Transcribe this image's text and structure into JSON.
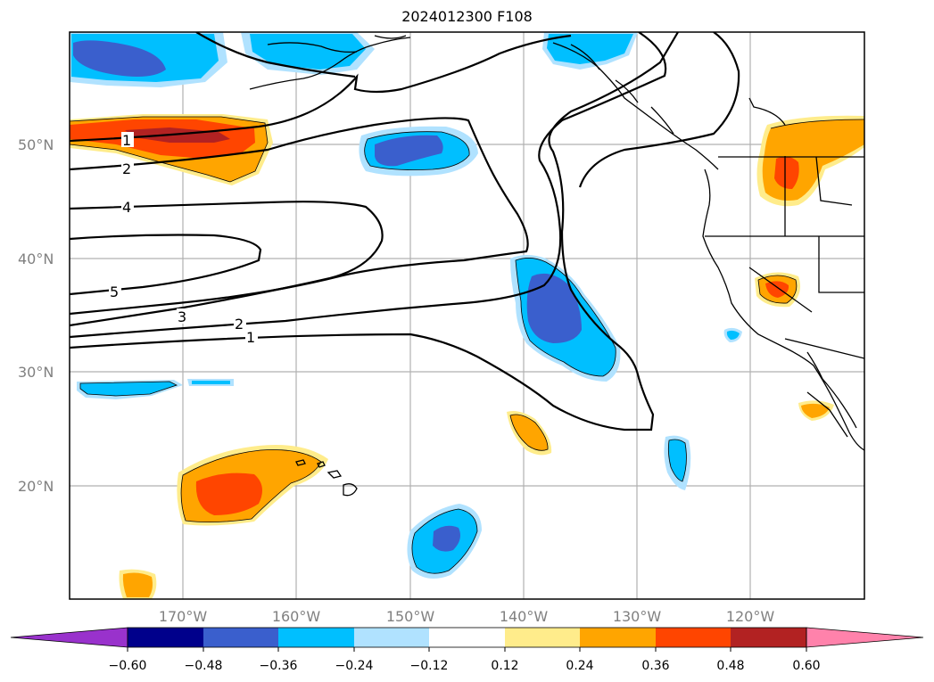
{
  "title": "2024012300 F108",
  "map": {
    "lat_labels": [
      "50°N",
      "40°N",
      "30°N",
      "20°N"
    ],
    "lon_labels": [
      "170°W",
      "160°W",
      "150°W",
      "140°W",
      "130°W",
      "120°W"
    ],
    "contour_labels": [
      "1",
      "2",
      "4",
      "5",
      "3",
      "2",
      "1"
    ]
  },
  "colorbar": {
    "tick_labels": [
      "−0.60",
      "−0.48",
      "−0.36",
      "−0.24",
      "−0.12",
      "0.12",
      "0.24",
      "0.36",
      "0.48",
      "0.60"
    ],
    "colors": [
      "#9932cc",
      "#00008b",
      "#3a5fcd",
      "#00bfff",
      "#b0e2ff",
      "#ffffff",
      "#ffec8b",
      "#ffa500",
      "#ff4500",
      "#b22222",
      "#ff82ab"
    ]
  },
  "colors": {
    "frame": "#000000",
    "grid": "#b0b0b0",
    "coast": "#000000",
    "contour": "#000000"
  }
}
